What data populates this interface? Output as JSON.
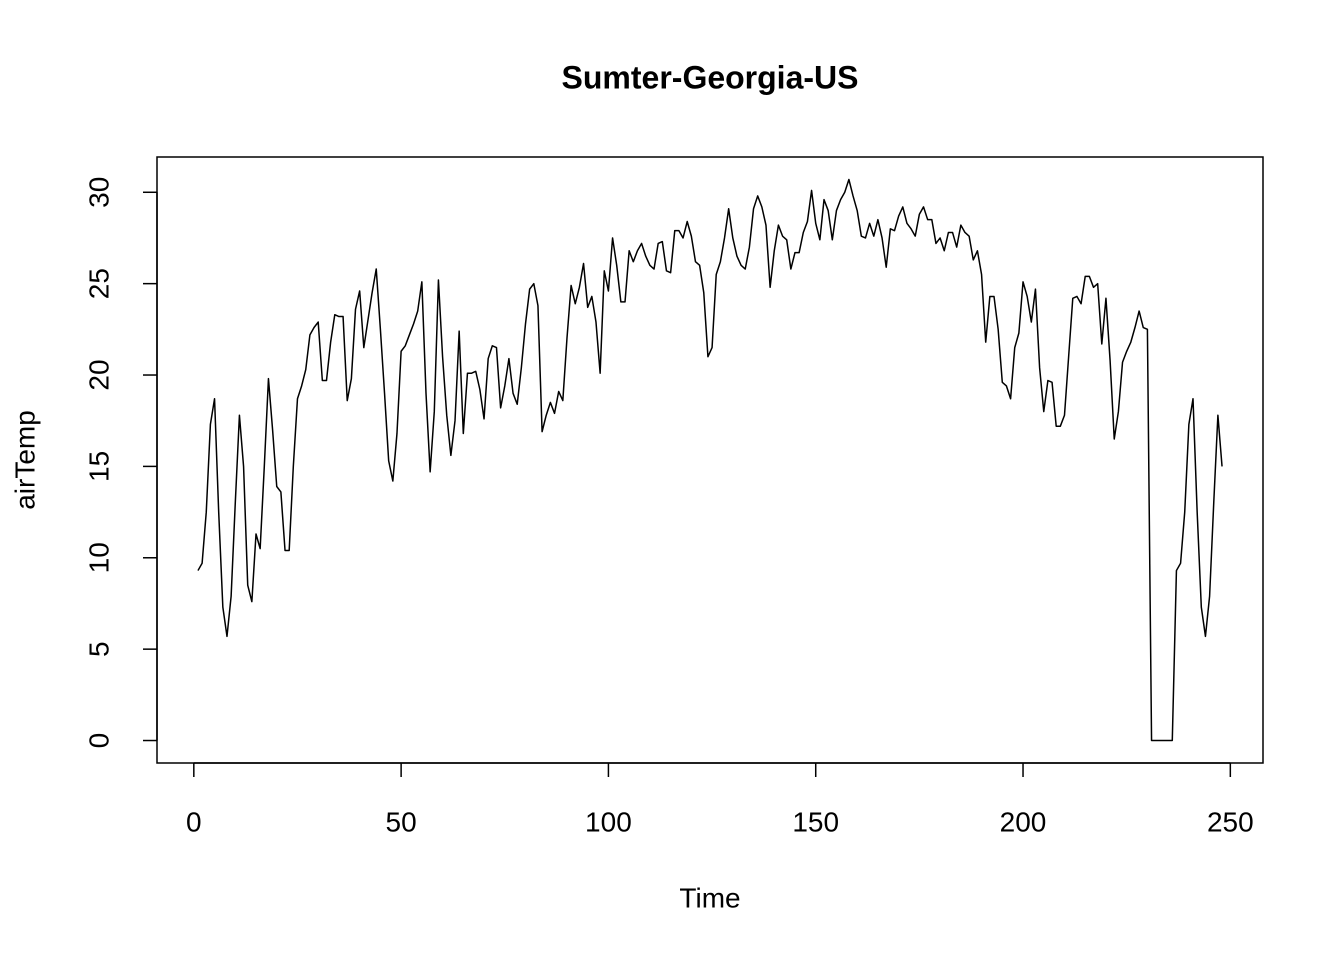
{
  "chart_data": {
    "type": "line",
    "title": "Sumter-Georgia-US",
    "xlabel": "Time",
    "ylabel": "airTemp",
    "x": [
      1,
      2,
      3,
      4,
      5,
      6,
      7,
      8,
      9,
      10,
      11,
      12,
      13,
      14,
      15,
      16,
      17,
      18,
      19,
      20,
      21,
      22,
      23,
      24,
      25,
      26,
      27,
      28,
      29,
      30,
      31,
      32,
      33,
      34,
      35,
      36,
      37,
      38,
      39,
      40,
      41,
      42,
      43,
      44,
      45,
      46,
      47,
      48,
      49,
      50,
      51,
      52,
      53,
      54,
      55,
      56,
      57,
      58,
      59,
      60,
      61,
      62,
      63,
      64,
      65,
      66,
      67,
      68,
      69,
      70,
      71,
      72,
      73,
      74,
      75,
      76,
      77,
      78,
      79,
      80,
      81,
      82,
      83,
      84,
      85,
      86,
      87,
      88,
      89,
      90,
      91,
      92,
      93,
      94,
      95,
      96,
      97,
      98,
      99,
      100,
      101,
      102,
      103,
      104,
      105,
      106,
      107,
      108,
      109,
      110,
      111,
      112,
      113,
      114,
      115,
      116,
      117,
      118,
      119,
      120,
      121,
      122,
      123,
      124,
      125,
      126,
      127,
      128,
      129,
      130,
      131,
      132,
      133,
      134,
      135,
      136,
      137,
      138,
      139,
      140,
      141,
      142,
      143,
      144,
      145,
      146,
      147,
      148,
      149,
      150,
      151,
      152,
      153,
      154,
      155,
      156,
      157,
      158,
      159,
      160,
      161,
      162,
      163,
      164,
      165,
      166,
      167,
      168,
      169,
      170,
      171,
      172,
      173,
      174,
      175,
      176,
      177,
      178,
      179,
      180,
      181,
      182,
      183,
      184,
      185,
      186,
      187,
      188,
      189,
      190,
      191,
      192,
      193,
      194,
      195,
      196,
      197,
      198,
      199,
      200,
      201,
      202,
      203,
      204,
      205,
      206,
      207,
      208,
      209,
      210,
      211,
      212,
      213,
      214,
      215,
      216,
      217,
      218,
      219,
      220,
      221,
      222,
      223,
      224,
      225,
      226,
      227,
      228,
      229,
      230,
      231,
      232,
      233,
      234,
      235,
      236,
      237,
      238,
      239,
      240,
      241,
      242,
      243,
      244,
      245,
      246,
      247,
      248
    ],
    "series": [
      {
        "color": "#000000",
        "values": [
          9.3,
          9.7,
          12.5,
          17.3,
          18.7,
          12.5,
          7.3,
          5.7,
          7.9,
          13,
          17.8,
          15,
          8.5,
          7.6,
          11.3,
          10.5,
          15,
          19.8,
          17,
          13.9,
          13.6,
          10.4,
          10.4,
          15,
          18.7,
          19.4,
          20.3,
          22.2,
          22.6,
          22.9,
          19.7,
          19.7,
          21.8,
          23.3,
          23.2,
          23.2,
          18.6,
          19.8,
          23.6,
          24.6,
          21.5,
          23,
          24.5,
          25.8,
          22.5,
          19,
          15.3,
          14.2,
          16.8,
          21.3,
          21.6,
          22.2,
          22.8,
          23.5,
          25.1,
          19,
          14.7,
          18,
          25.2,
          21,
          17.8,
          15.6,
          17.5,
          22.4,
          16.8,
          20.1,
          20.1,
          20.2,
          19.2,
          17.6,
          20.9,
          21.6,
          21.5,
          18.2,
          19.4,
          20.9,
          19,
          18.4,
          20.4,
          22.8,
          24.7,
          25,
          23.8,
          16.9,
          17.8,
          18.5,
          17.9,
          19.1,
          18.6,
          22,
          24.9,
          23.9,
          24.8,
          26.1,
          23.7,
          24.3,
          22.9,
          20.1,
          25.7,
          24.6,
          27.5,
          26,
          24,
          24,
          26.8,
          26.2,
          26.8,
          27.2,
          26.5,
          26,
          25.8,
          27.2,
          27.3,
          25.7,
          25.6,
          27.9,
          27.9,
          27.5,
          28.4,
          27.6,
          26.2,
          26,
          24.5,
          21,
          21.5,
          25.5,
          26.2,
          27.5,
          29.1,
          27.5,
          26.5,
          26,
          25.8,
          27,
          29.1,
          29.8,
          29.2,
          28.2,
          24.8,
          26.8,
          28.2,
          27.6,
          27.4,
          25.8,
          26.7,
          26.7,
          27.8,
          28.4,
          30.1,
          28.3,
          27.4,
          29.6,
          29,
          27.4,
          29,
          29.6,
          30,
          30.7,
          29.8,
          29,
          27.6,
          27.5,
          28.3,
          27.6,
          28.5,
          27.5,
          25.9,
          28,
          27.9,
          28.7,
          29.2,
          28.3,
          28,
          27.6,
          28.8,
          29.2,
          28.5,
          28.5,
          27.2,
          27.5,
          26.8,
          27.8,
          27.8,
          27,
          28.2,
          27.8,
          27.6,
          26.3,
          26.8,
          25.5,
          21.8,
          24.3,
          24.3,
          22.5,
          19.6,
          19.4,
          18.7,
          21.5,
          22.3,
          25.1,
          24.3,
          22.9,
          24.7,
          20.4,
          18,
          19.7,
          19.6,
          17.2,
          17.2,
          17.8,
          21,
          24.2,
          24.3,
          23.9,
          25.4,
          25.4,
          24.8,
          25,
          21.7,
          24.2,
          20.8,
          16.5,
          18,
          20.7,
          21.3,
          21.8,
          22.6,
          23.5,
          22.6,
          22.5,
          0,
          0,
          0,
          0,
          0,
          0,
          9.3,
          9.7,
          12.5,
          17.3,
          18.7,
          12.5,
          7.3,
          5.7,
          7.9,
          13,
          17.8,
          15
        ]
      }
    ],
    "xlim": [
      -8.88,
      257.88
    ],
    "xticks": [
      0,
      50,
      100,
      150,
      200,
      250
    ],
    "ylim": [
      -1.23,
      31.93
    ],
    "yticks": [
      0,
      5,
      10,
      15,
      20,
      25,
      30
    ]
  }
}
